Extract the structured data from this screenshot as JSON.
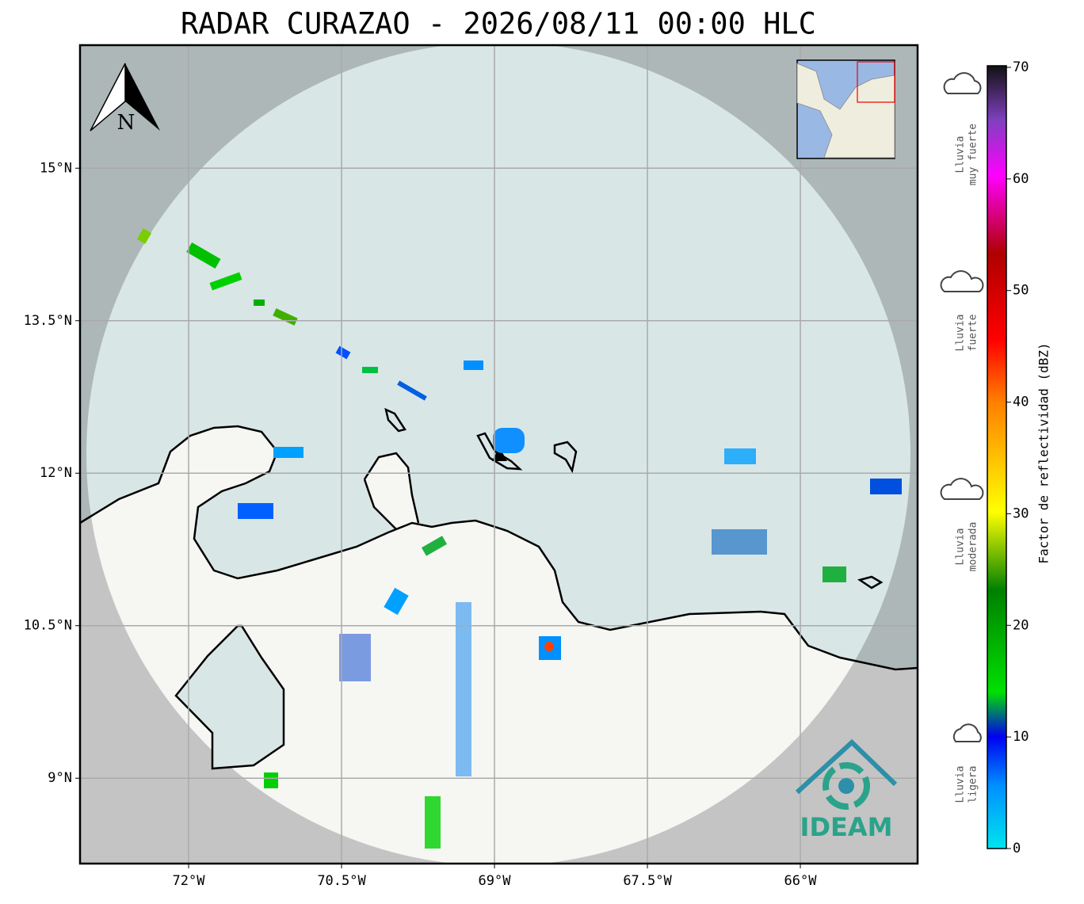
{
  "title": "RADAR CURAZAO - 2026/08/11 00:00 HLC",
  "map": {
    "xlim": [
      -73.065,
      -64.85
    ],
    "ylim": [
      8.16,
      16.21
    ],
    "xticks": [
      {
        "value": -72,
        "label": "72°W"
      },
      {
        "value": -70.5,
        "label": "70.5°W"
      },
      {
        "value": -69,
        "label": "69°W"
      },
      {
        "value": -67.5,
        "label": "67.5°W"
      },
      {
        "value": -66,
        "label": "66°W"
      }
    ],
    "yticks": [
      {
        "value": 15,
        "label": "15°N"
      },
      {
        "value": 13.5,
        "label": "13.5°N"
      },
      {
        "value": 12,
        "label": "12°N"
      },
      {
        "value": 10.5,
        "label": "10.5°N"
      },
      {
        "value": 9,
        "label": "9°N"
      }
    ],
    "north": "N",
    "logo": "IDEAM"
  },
  "colorbar": {
    "label": "Factor de reflectividad (dBZ)",
    "lim": [
      0,
      70
    ],
    "ticks": [
      0,
      10,
      20,
      30,
      40,
      50,
      60,
      70
    ]
  },
  "legend": [
    [
      "Lluvia",
      "muy fuerte"
    ],
    [
      "Lluvia",
      "fuerte"
    ],
    [
      "Lluvia",
      "moderada"
    ],
    [
      "Lluvia",
      "ligera"
    ]
  ]
}
